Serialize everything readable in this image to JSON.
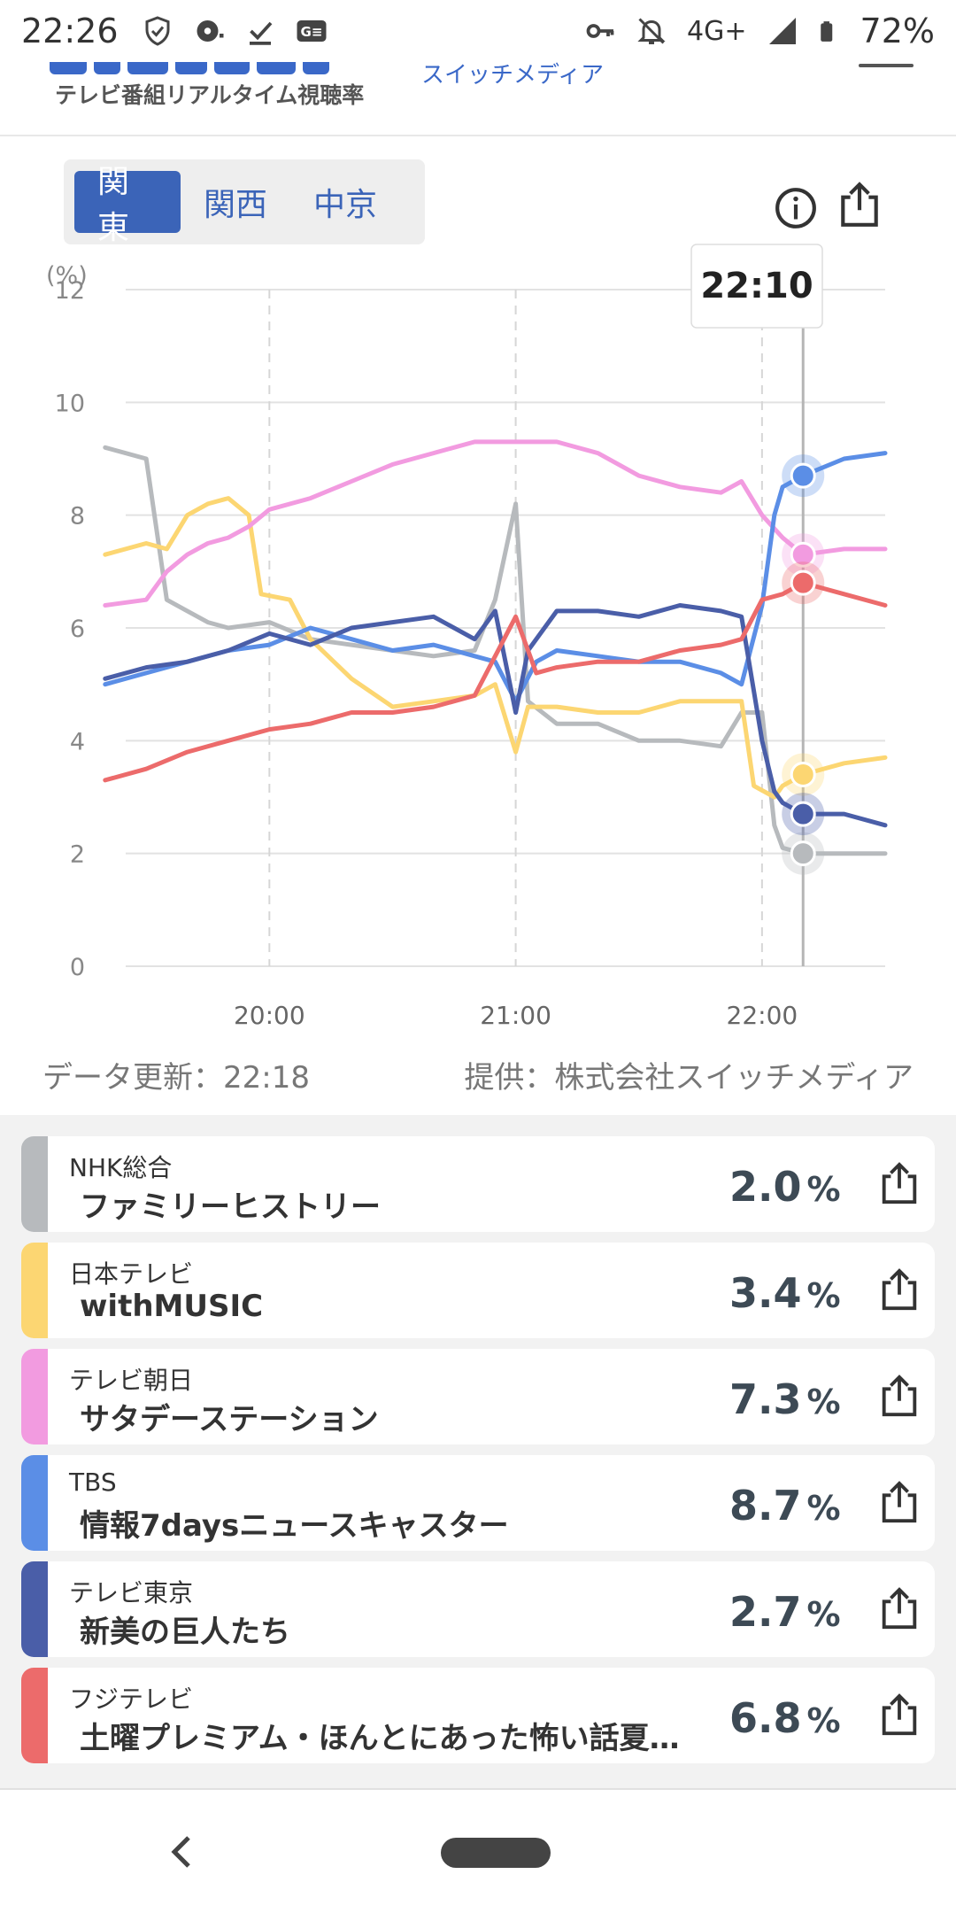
{
  "status_bar": {
    "time": "22:26",
    "network": "4G+",
    "battery": "72%",
    "icons": [
      "shield-check-icon",
      "record-icon",
      "download-done-icon",
      "ge-badge-icon",
      "vpn-key-icon",
      "bell-off-icon",
      "signal-icon",
      "battery-icon"
    ]
  },
  "app_header": {
    "subtitle": "テレビ番組リアルタイム視聴率",
    "link_text": "スイッチメディア"
  },
  "region_tabs": [
    {
      "label": "関東",
      "active": true
    },
    {
      "label": "関西",
      "active": false
    },
    {
      "label": "中京",
      "active": false
    }
  ],
  "chart": {
    "tooltip": "22:10",
    "data_updated": "データ更新：22:18",
    "provider": "提供：株式会社スイッチメディア"
  },
  "chart_data": {
    "type": "line",
    "ylabel": "(%)",
    "ylim": [
      0,
      12
    ],
    "y_ticks": [
      0,
      2,
      4,
      6,
      8,
      10,
      12
    ],
    "x_range": [
      "19:25",
      "22:30"
    ],
    "x_ticks": [
      "20:00",
      "21:00",
      "22:00"
    ],
    "cursor_time": "22:10",
    "grid": true,
    "series": [
      {
        "name": "NHK総合",
        "color": "#b7babd",
        "x": [
          "19:20",
          "19:30",
          "19:35",
          "19:40",
          "19:45",
          "19:50",
          "20:00",
          "20:10",
          "20:20",
          "20:30",
          "20:40",
          "20:50",
          "20:55",
          "21:00",
          "21:03",
          "21:10",
          "21:20",
          "21:30",
          "21:40",
          "21:50",
          "21:55",
          "22:00",
          "22:03",
          "22:05",
          "22:10",
          "22:20",
          "22:30"
        ],
        "y": [
          9.2,
          9.0,
          6.5,
          6.3,
          6.1,
          6.0,
          6.1,
          5.8,
          5.7,
          5.6,
          5.5,
          5.6,
          6.5,
          8.2,
          4.7,
          4.3,
          4.3,
          4.0,
          4.0,
          3.9,
          4.5,
          4.5,
          2.5,
          2.1,
          2.0,
          2.0,
          2.0
        ]
      },
      {
        "name": "日本テレビ",
        "color": "#fcd672",
        "x": [
          "19:20",
          "19:30",
          "19:35",
          "19:40",
          "19:45",
          "19:50",
          "19:55",
          "19:58",
          "20:05",
          "20:10",
          "20:20",
          "20:30",
          "20:40",
          "20:50",
          "20:55",
          "21:00",
          "21:03",
          "21:10",
          "21:20",
          "21:30",
          "21:40",
          "21:50",
          "21:55",
          "21:58",
          "22:03",
          "22:05",
          "22:10",
          "22:20",
          "22:30"
        ],
        "y": [
          7.3,
          7.5,
          7.4,
          8.0,
          8.2,
          8.3,
          8.0,
          6.6,
          6.5,
          5.8,
          5.1,
          4.6,
          4.7,
          4.8,
          5.0,
          3.8,
          4.6,
          4.6,
          4.5,
          4.5,
          4.7,
          4.7,
          4.7,
          3.2,
          3.0,
          3.2,
          3.4,
          3.6,
          3.7
        ]
      },
      {
        "name": "テレビ朝日",
        "color": "#f29be0",
        "x": [
          "19:20",
          "19:30",
          "19:35",
          "19:40",
          "19:45",
          "19:50",
          "19:55",
          "20:00",
          "20:10",
          "20:20",
          "20:30",
          "20:40",
          "20:50",
          "21:00",
          "21:10",
          "21:20",
          "21:30",
          "21:40",
          "21:50",
          "21:55",
          "22:00",
          "22:05",
          "22:10",
          "22:20",
          "22:30"
        ],
        "y": [
          6.4,
          6.5,
          7.0,
          7.3,
          7.5,
          7.6,
          7.8,
          8.1,
          8.3,
          8.6,
          8.9,
          9.1,
          9.3,
          9.3,
          9.3,
          9.1,
          8.7,
          8.5,
          8.4,
          8.6,
          8.0,
          7.6,
          7.3,
          7.4,
          7.4
        ]
      },
      {
        "name": "TBS",
        "color": "#5b8ee6",
        "x": [
          "19:20",
          "19:30",
          "19:40",
          "19:50",
          "20:00",
          "20:10",
          "20:20",
          "20:30",
          "20:40",
          "20:50",
          "20:55",
          "21:00",
          "21:05",
          "21:10",
          "21:20",
          "21:30",
          "21:40",
          "21:50",
          "21:55",
          "22:00",
          "22:03",
          "22:05",
          "22:10",
          "22:20",
          "22:30"
        ],
        "y": [
          5.0,
          5.2,
          5.4,
          5.6,
          5.7,
          6.0,
          5.8,
          5.6,
          5.7,
          5.5,
          5.4,
          4.7,
          5.4,
          5.6,
          5.5,
          5.4,
          5.4,
          5.2,
          5.0,
          6.4,
          8.0,
          8.5,
          8.7,
          9.0,
          9.1
        ]
      },
      {
        "name": "テレビ東京",
        "color": "#4a5ea8",
        "x": [
          "19:20",
          "19:30",
          "19:40",
          "19:50",
          "20:00",
          "20:10",
          "20:20",
          "20:30",
          "20:40",
          "20:50",
          "20:55",
          "21:00",
          "21:03",
          "21:10",
          "21:20",
          "21:30",
          "21:40",
          "21:50",
          "21:55",
          "22:00",
          "22:03",
          "22:05",
          "22:10",
          "22:20",
          "22:30"
        ],
        "y": [
          5.1,
          5.3,
          5.4,
          5.6,
          5.9,
          5.7,
          6.0,
          6.1,
          6.2,
          5.8,
          6.3,
          4.5,
          5.6,
          6.3,
          6.3,
          6.2,
          6.4,
          6.3,
          6.2,
          4.0,
          3.1,
          2.9,
          2.7,
          2.7,
          2.5
        ]
      },
      {
        "name": "フジテレビ",
        "color": "#ec6b6b",
        "x": [
          "19:20",
          "19:30",
          "19:40",
          "19:50",
          "20:00",
          "20:10",
          "20:20",
          "20:30",
          "20:40",
          "20:50",
          "21:00",
          "21:05",
          "21:10",
          "21:20",
          "21:30",
          "21:40",
          "21:50",
          "21:55",
          "22:00",
          "22:05",
          "22:10",
          "22:20",
          "22:30"
        ],
        "y": [
          3.3,
          3.5,
          3.8,
          4.0,
          4.2,
          4.3,
          4.5,
          4.5,
          4.6,
          4.8,
          6.2,
          5.2,
          5.3,
          5.4,
          5.4,
          5.6,
          5.7,
          5.8,
          6.5,
          6.6,
          6.8,
          6.6,
          6.4
        ]
      }
    ]
  },
  "channels": [
    {
      "station": "NHK総合",
      "program": "ファミリーヒストリー",
      "rating": "2.0",
      "unit": "%",
      "color": "#b7babd"
    },
    {
      "station": "日本テレビ",
      "program": "withMUSIC",
      "rating": "3.4",
      "unit": "%",
      "color": "#fcd672"
    },
    {
      "station": "テレビ朝日",
      "program": "サタデーステーション",
      "rating": "7.3",
      "unit": "%",
      "color": "#f29be0"
    },
    {
      "station": "TBS",
      "program": "情報7daysニュースキャスター",
      "rating": "8.7",
      "unit": "%",
      "color": "#5b8ee6"
    },
    {
      "station": "テレビ東京",
      "program": "新美の巨人たち",
      "rating": "2.7",
      "unit": "%",
      "color": "#4a5ea8"
    },
    {
      "station": "フジテレビ",
      "program": "土曜プレミアム・ほんとにあった怖い話夏…",
      "rating": "6.8",
      "unit": "%",
      "color": "#ec6b6b"
    }
  ]
}
